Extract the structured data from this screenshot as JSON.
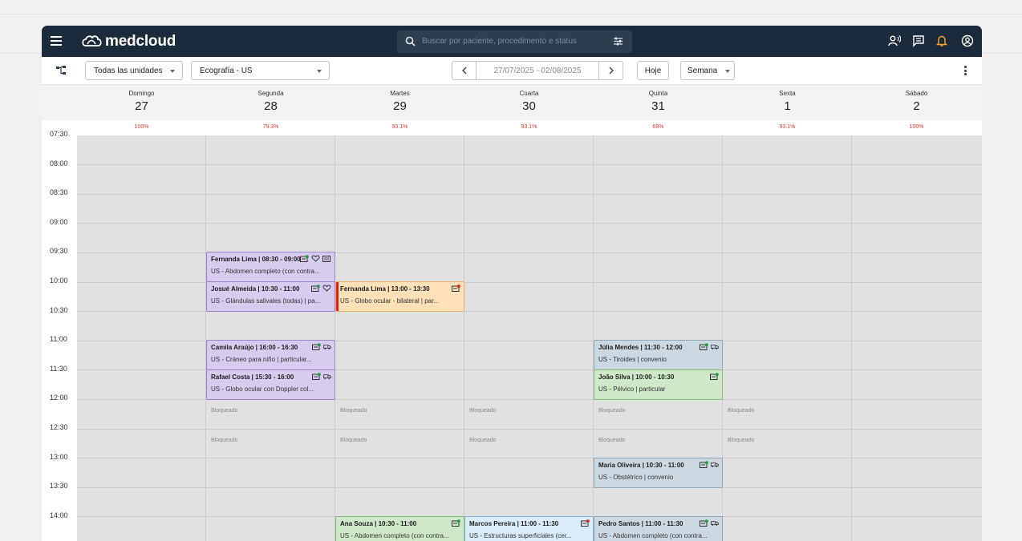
{
  "header": {
    "brand": "medcloud",
    "search_placeholder": "Buscar por paciente, procedimento e status"
  },
  "toolbar": {
    "unit_select": "Todas las unidades",
    "modality_select": "Ecografía - US",
    "date_range": "27/07/2025 - 02/08/2025",
    "today_label": "Hoje",
    "view_select": "Semana"
  },
  "days": [
    {
      "name": "Domingo",
      "num": "27",
      "occupancy": "100%"
    },
    {
      "name": "Segunda",
      "num": "28",
      "occupancy": "79.3%"
    },
    {
      "name": "Martes",
      "num": "29",
      "occupancy": "93.1%"
    },
    {
      "name": "Cuarta",
      "num": "30",
      "occupancy": "93.1%"
    },
    {
      "name": "Quinta",
      "num": "31",
      "occupancy": "69%"
    },
    {
      "name": "Sexta",
      "num": "1",
      "occupancy": "93.1%"
    },
    {
      "name": "Sábado",
      "num": "2",
      "occupancy": "100%"
    }
  ],
  "times": [
    "07:30",
    "08:00",
    "08:30",
    "09:00",
    "09:30",
    "10:00",
    "10:30",
    "11:00",
    "11:30",
    "12:00",
    "12:30",
    "13:00",
    "13:30",
    "14:00"
  ],
  "blocked_label": "Bloqueado",
  "blocked_slots": [
    {
      "day": 1,
      "slot": 9
    },
    {
      "day": 2,
      "slot": 9
    },
    {
      "day": 3,
      "slot": 9
    },
    {
      "day": 4,
      "slot": 9
    },
    {
      "day": 5,
      "slot": 9
    },
    {
      "day": 1,
      "slot": 10
    },
    {
      "day": 2,
      "slot": 10
    },
    {
      "day": 3,
      "slot": 10
    },
    {
      "day": 4,
      "slot": 10
    },
    {
      "day": 5,
      "slot": 10
    }
  ],
  "appointments": [
    {
      "day": 1,
      "slot": 4,
      "color": "purple",
      "title": "Fernanda Lima | 08:30 - 09:00",
      "desc": "US - Abdomen completo (con contra...",
      "icons": [
        "card-check",
        "heart",
        "id-card"
      ]
    },
    {
      "day": 1,
      "slot": 5,
      "color": "purple",
      "title": "Josué Almeida | 10:30 - 11:00",
      "desc": "US -  Glándulas salivales (todas) | pa...",
      "icons": [
        "card-check",
        "heart"
      ]
    },
    {
      "day": 2,
      "slot": 5,
      "color": "orange",
      "title": "Fernanda Lima | 13:00 - 13:30",
      "desc": "US - Globo ocular - bilateral | par...",
      "icons": [
        "card-alert"
      ],
      "flag": true
    },
    {
      "day": 1,
      "slot": 7,
      "color": "purple",
      "title": "Camila Araújo | 16:00 - 16:30",
      "desc": "US -  Cráneo para niño | particular...",
      "icons": [
        "card-check",
        "ambulance"
      ]
    },
    {
      "day": 1,
      "slot": 8,
      "color": "purple",
      "title": "Rafael Costa | 15:30 - 16:00",
      "desc": "US - Globo ocular con Doppler col...",
      "icons": [
        "card-check",
        "ambulance"
      ]
    },
    {
      "day": 4,
      "slot": 7,
      "color": "steel",
      "title": "Júlia Mendes | 11:30 - 12:00",
      "desc": "US - Tiroides | convenio",
      "icons": [
        "card-check",
        "ambulance"
      ]
    },
    {
      "day": 4,
      "slot": 8,
      "color": "green",
      "title": "João Silva | 10:00 - 10:30",
      "desc": "US - Pélvico | particular",
      "icons": [
        "card-check"
      ]
    },
    {
      "day": 4,
      "slot": 11,
      "color": "steel",
      "title": "Maria Oliveira | 10:30 - 11:00",
      "desc": "US - Obstétrico | convenio",
      "icons": [
        "card-check",
        "ambulance"
      ]
    },
    {
      "day": 2,
      "slot": 13,
      "color": "green",
      "title": "Ana Souza | 10:30 - 11:00",
      "desc": "US - Abdomen completo (con contra...",
      "icons": [
        "card-check"
      ]
    },
    {
      "day": 3,
      "slot": 13,
      "color": "blue",
      "title": "Marcos Pereira | 11:00 - 11:30",
      "desc": "US - Estructuras superficiales (cer...",
      "icons": [
        "card-alert"
      ]
    },
    {
      "day": 4,
      "slot": 13,
      "color": "steel",
      "title": "Pedro Santos | 11:00 - 11:30",
      "desc": "US - Abdomen completo (con contra...",
      "icons": [
        "card-check",
        "ambulance"
      ]
    }
  ],
  "colors": {
    "topbar": "#1b2b3b",
    "accent_bell": "#f5a623",
    "occupancy_text": "#e53935",
    "check_dot": "#1e9e3e",
    "alert_dot": "#e31e24"
  }
}
